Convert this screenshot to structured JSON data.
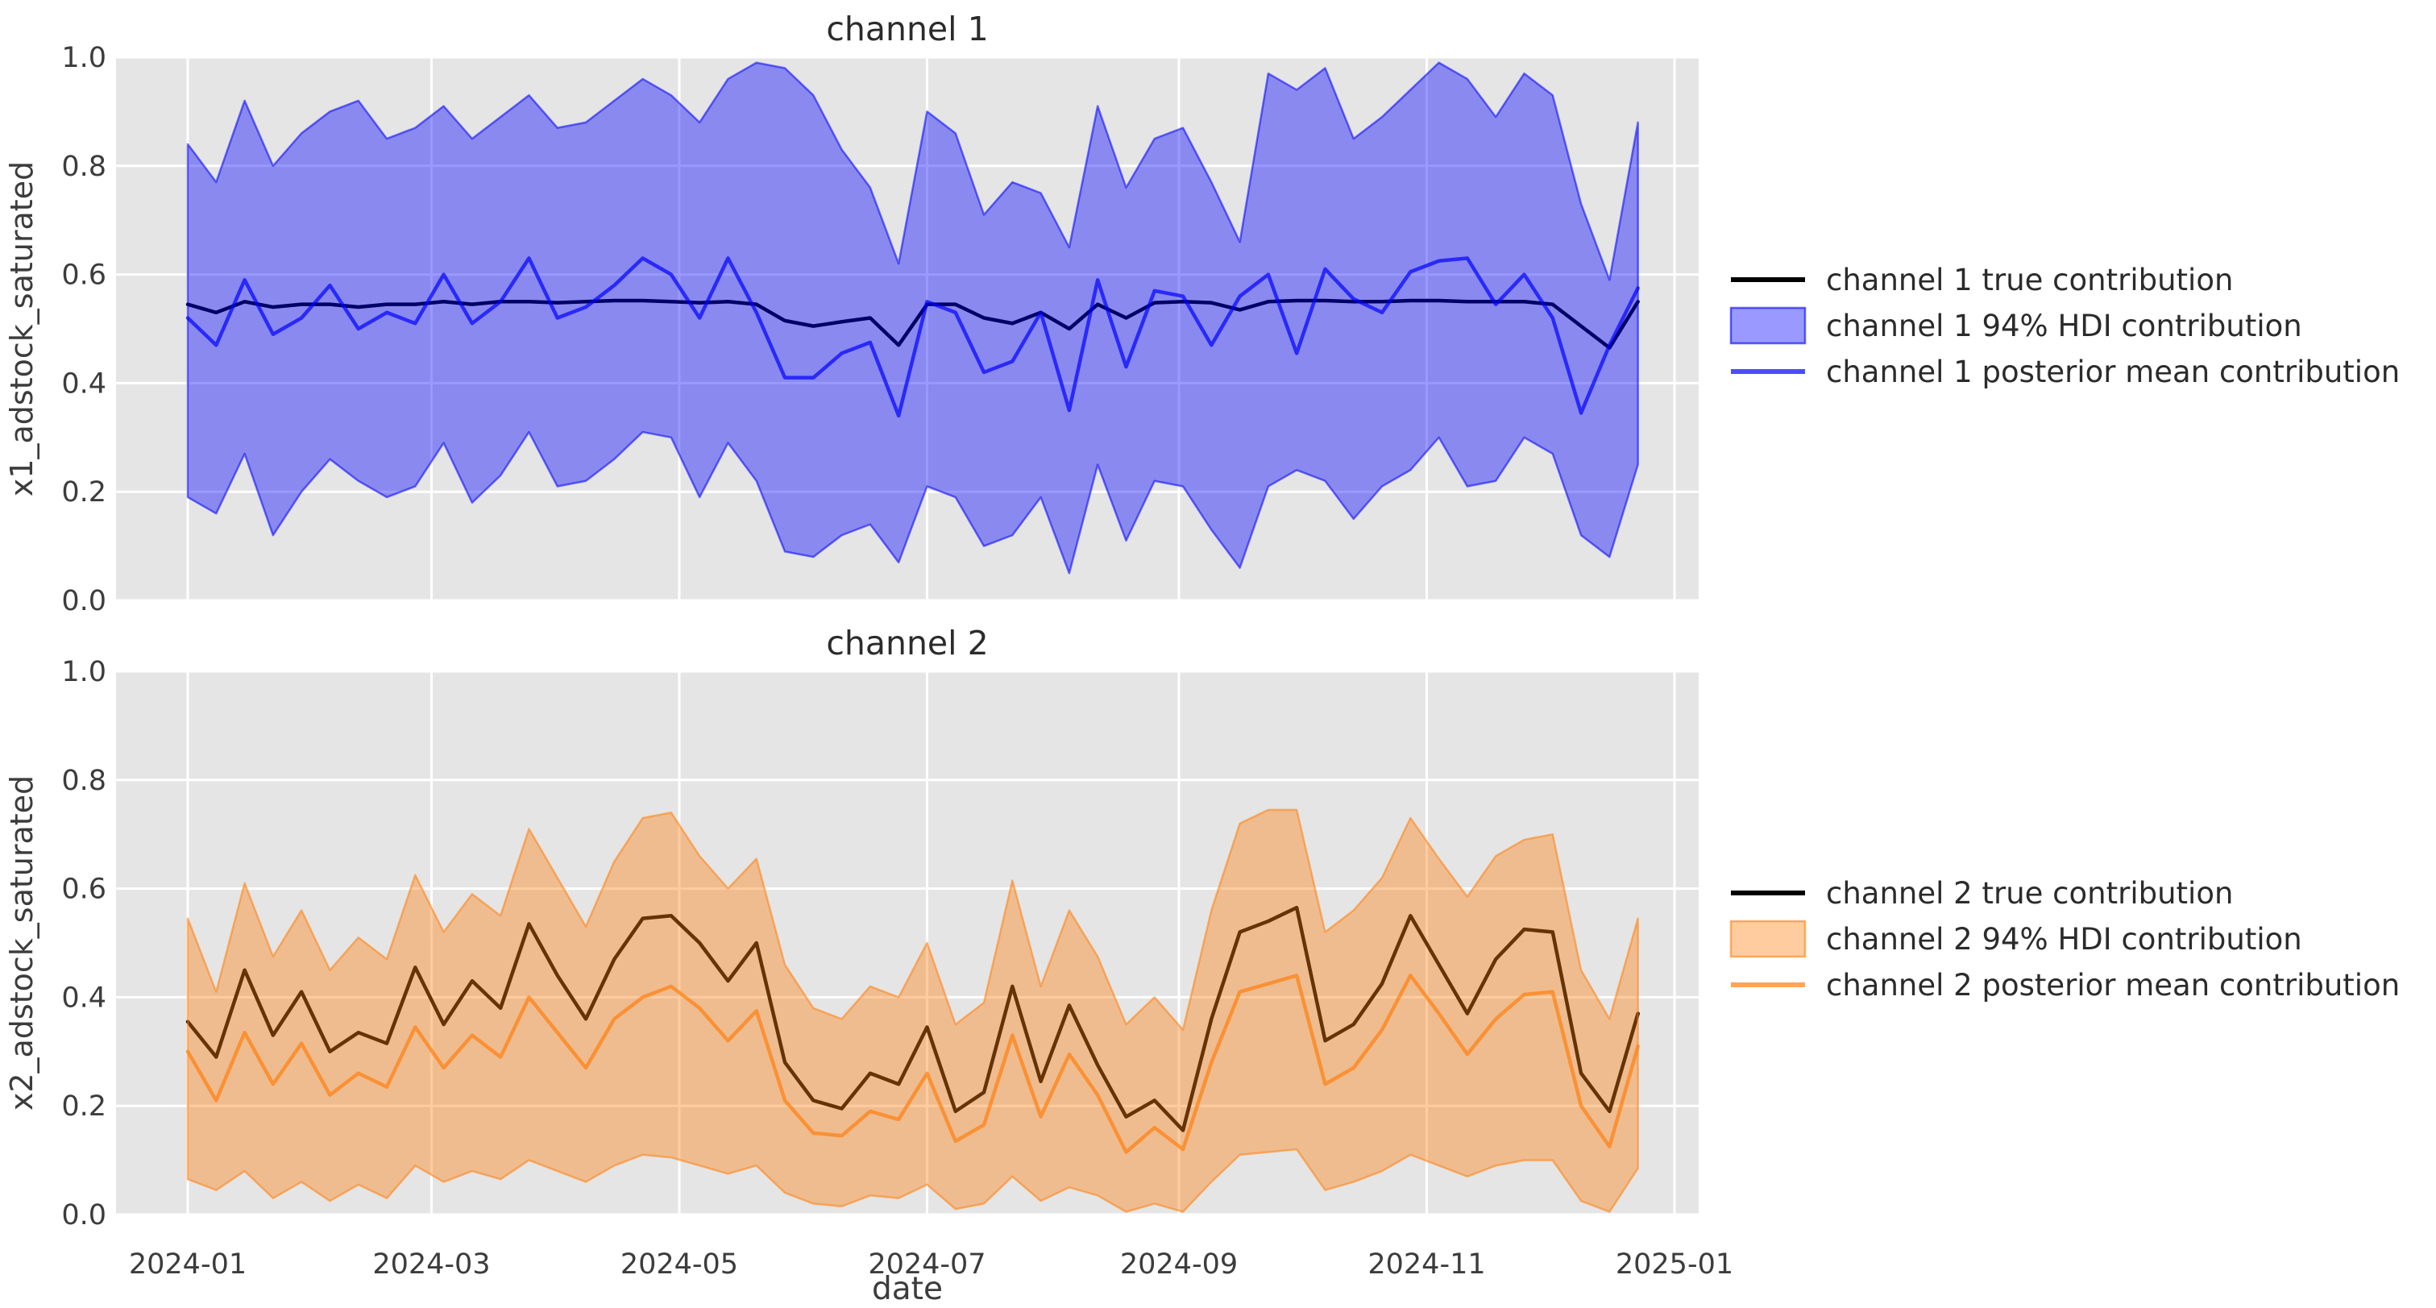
{
  "figure": {
    "background": "#ffffff",
    "axes_background": "#e5e5e5",
    "grid_color": "#ffffff",
    "tick_label_color": "#3c3c3c",
    "title_color": "#2b2b2b",
    "black_line_color": "#000000",
    "channel1_color": "#0000ff",
    "channel2_color": "#ff7f0e"
  },
  "chart_data": [
    {
      "type": "line",
      "title": "channel 1",
      "ylabel": "x1_adstock_saturated",
      "ylim": [
        0.0,
        1.0
      ],
      "yticks": [
        "0.0",
        "0.2",
        "0.4",
        "0.6",
        "0.8",
        "1.0"
      ],
      "grid": true,
      "legend_position": "right",
      "legend": [
        {
          "label": "channel 1 true contribution",
          "swatch": "line",
          "color": "#000000",
          "alpha": 1.0
        },
        {
          "label": "channel 1 94% HDI contribution",
          "swatch": "patch",
          "color": "#0000ff",
          "alpha": 0.4
        },
        {
          "label": "channel 1 posterior mean contribution",
          "swatch": "line",
          "color": "#0000ff",
          "alpha": 0.7
        }
      ],
      "series": [
        {
          "name": "channel 1 true contribution",
          "kind": "line",
          "color": "#000000",
          "alpha": 1.0,
          "values": [
            0.545,
            0.53,
            0.55,
            0.54,
            0.545,
            0.545,
            0.54,
            0.545,
            0.545,
            0.55,
            0.545,
            0.55,
            0.55,
            0.548,
            0.55,
            0.552,
            0.552,
            0.55,
            0.548,
            0.55,
            0.545,
            0.515,
            0.505,
            0.513,
            0.52,
            0.47,
            0.545,
            0.545,
            0.52,
            0.51,
            0.53,
            0.5,
            0.545,
            0.52,
            0.548,
            0.55,
            0.548,
            0.535,
            0.55,
            0.552,
            0.552,
            0.55,
            0.55,
            0.552,
            0.552,
            0.55,
            0.55,
            0.55,
            0.545,
            0.505,
            0.465,
            0.55
          ]
        },
        {
          "name": "channel 1 94% HDI contribution",
          "kind": "band",
          "color": "#0000ff",
          "alpha": 0.4,
          "upper": [
            0.84,
            0.77,
            0.92,
            0.8,
            0.86,
            0.9,
            0.92,
            0.85,
            0.87,
            0.91,
            0.85,
            0.89,
            0.93,
            0.87,
            0.88,
            0.92,
            0.96,
            0.93,
            0.88,
            0.96,
            0.99,
            0.98,
            0.93,
            0.83,
            0.76,
            0.62,
            0.9,
            0.86,
            0.71,
            0.77,
            0.75,
            0.65,
            0.91,
            0.76,
            0.85,
            0.87,
            0.77,
            0.66,
            0.97,
            0.94,
            0.98,
            0.85,
            0.89,
            0.94,
            0.99,
            0.96,
            0.89,
            0.97,
            0.93,
            0.73,
            0.59,
            0.88
          ],
          "lower": [
            0.19,
            0.16,
            0.27,
            0.12,
            0.2,
            0.26,
            0.22,
            0.19,
            0.21,
            0.29,
            0.18,
            0.23,
            0.31,
            0.21,
            0.22,
            0.26,
            0.31,
            0.3,
            0.19,
            0.29,
            0.22,
            0.09,
            0.08,
            0.12,
            0.14,
            0.07,
            0.21,
            0.19,
            0.1,
            0.12,
            0.19,
            0.05,
            0.25,
            0.11,
            0.22,
            0.21,
            0.13,
            0.06,
            0.21,
            0.24,
            0.22,
            0.15,
            0.21,
            0.24,
            0.3,
            0.21,
            0.22,
            0.3,
            0.27,
            0.12,
            0.08,
            0.25
          ]
        },
        {
          "name": "channel 1 posterior mean contribution",
          "kind": "line",
          "color": "#0000ff",
          "alpha": 0.7,
          "values": [
            0.52,
            0.47,
            0.59,
            0.49,
            0.52,
            0.58,
            0.5,
            0.53,
            0.51,
            0.6,
            0.51,
            0.55,
            0.63,
            0.52,
            0.54,
            0.58,
            0.63,
            0.6,
            0.52,
            0.63,
            0.53,
            0.41,
            0.41,
            0.455,
            0.475,
            0.34,
            0.55,
            0.53,
            0.42,
            0.44,
            0.53,
            0.35,
            0.59,
            0.43,
            0.57,
            0.56,
            0.47,
            0.56,
            0.6,
            0.455,
            0.61,
            0.555,
            0.53,
            0.605,
            0.625,
            0.63,
            0.545,
            0.6,
            0.52,
            0.345,
            0.47,
            0.575
          ]
        }
      ]
    },
    {
      "type": "line",
      "title": "channel 2",
      "ylabel": "x2_adstock_saturated",
      "ylim": [
        0.0,
        1.0
      ],
      "yticks": [
        "0.0",
        "0.2",
        "0.4",
        "0.6",
        "0.8",
        "1.0"
      ],
      "grid": true,
      "legend_position": "right",
      "legend": [
        {
          "label": "channel 2 true contribution",
          "swatch": "line",
          "color": "#000000",
          "alpha": 1.0
        },
        {
          "label": "channel 2 94% HDI contribution",
          "swatch": "patch",
          "color": "#ff7f0e",
          "alpha": 0.4
        },
        {
          "label": "channel 2 posterior mean contribution",
          "swatch": "line",
          "color": "#ff7f0e",
          "alpha": 0.7
        }
      ],
      "series": [
        {
          "name": "channel 2 true contribution",
          "kind": "line",
          "color": "#000000",
          "alpha": 1.0,
          "values": [
            0.355,
            0.29,
            0.45,
            0.33,
            0.41,
            0.3,
            0.335,
            0.315,
            0.455,
            0.35,
            0.43,
            0.38,
            0.535,
            0.44,
            0.36,
            0.47,
            0.545,
            0.55,
            0.5,
            0.43,
            0.5,
            0.28,
            0.21,
            0.195,
            0.26,
            0.24,
            0.345,
            0.19,
            0.225,
            0.42,
            0.245,
            0.385,
            0.275,
            0.18,
            0.21,
            0.155,
            0.36,
            0.52,
            0.54,
            0.565,
            0.32,
            0.35,
            0.425,
            0.55,
            0.46,
            0.37,
            0.47,
            0.525,
            0.52,
            0.26,
            0.19,
            0.37
          ]
        },
        {
          "name": "channel 2 94% HDI contribution",
          "kind": "band",
          "color": "#ff7f0e",
          "alpha": 0.4,
          "upper": [
            0.545,
            0.41,
            0.61,
            0.475,
            0.56,
            0.45,
            0.51,
            0.47,
            0.625,
            0.52,
            0.59,
            0.55,
            0.71,
            0.62,
            0.53,
            0.65,
            0.73,
            0.74,
            0.66,
            0.6,
            0.655,
            0.46,
            0.38,
            0.36,
            0.42,
            0.4,
            0.5,
            0.35,
            0.39,
            0.615,
            0.42,
            0.56,
            0.475,
            0.35,
            0.4,
            0.34,
            0.56,
            0.72,
            0.745,
            0.745,
            0.52,
            0.56,
            0.62,
            0.73,
            0.655,
            0.585,
            0.66,
            0.69,
            0.7,
            0.45,
            0.36,
            0.545
          ],
          "lower": [
            0.065,
            0.045,
            0.08,
            0.03,
            0.06,
            0.025,
            0.055,
            0.03,
            0.09,
            0.06,
            0.08,
            0.065,
            0.1,
            0.08,
            0.06,
            0.09,
            0.11,
            0.105,
            0.09,
            0.075,
            0.09,
            0.04,
            0.02,
            0.015,
            0.035,
            0.03,
            0.055,
            0.01,
            0.02,
            0.07,
            0.025,
            0.05,
            0.035,
            0.005,
            0.02,
            0.005,
            0.06,
            0.11,
            0.115,
            0.12,
            0.045,
            0.06,
            0.08,
            0.11,
            0.09,
            0.07,
            0.09,
            0.1,
            0.1,
            0.025,
            0.005,
            0.085
          ]
        },
        {
          "name": "channel 2 posterior mean contribution",
          "kind": "line",
          "color": "#ff7f0e",
          "alpha": 0.7,
          "values": [
            0.3,
            0.21,
            0.335,
            0.24,
            0.315,
            0.22,
            0.26,
            0.235,
            0.345,
            0.27,
            0.33,
            0.29,
            0.4,
            0.335,
            0.27,
            0.36,
            0.4,
            0.42,
            0.38,
            0.32,
            0.375,
            0.21,
            0.15,
            0.145,
            0.19,
            0.175,
            0.26,
            0.135,
            0.165,
            0.33,
            0.18,
            0.295,
            0.22,
            0.115,
            0.16,
            0.12,
            0.28,
            0.41,
            0.425,
            0.44,
            0.24,
            0.27,
            0.34,
            0.44,
            0.37,
            0.295,
            0.36,
            0.405,
            0.41,
            0.2,
            0.125,
            0.31
          ]
        }
      ]
    }
  ],
  "x_axis": {
    "label": "date",
    "tick_labels": [
      "2024-01",
      "2024-03",
      "2024-05",
      "2024-07",
      "2024-09",
      "2024-11",
      "2025-01"
    ],
    "tick_dates": [
      "2024-01-01",
      "2024-03-01",
      "2024-05-01",
      "2024-07-01",
      "2024-09-01",
      "2024-11-01",
      "2025-01-01"
    ],
    "dates": [
      "2024-01-01",
      "2024-01-08",
      "2024-01-15",
      "2024-01-22",
      "2024-01-29",
      "2024-02-05",
      "2024-02-12",
      "2024-02-19",
      "2024-02-26",
      "2024-03-04",
      "2024-03-11",
      "2024-03-18",
      "2024-03-25",
      "2024-04-01",
      "2024-04-08",
      "2024-04-15",
      "2024-04-22",
      "2024-04-29",
      "2024-05-06",
      "2024-05-13",
      "2024-05-20",
      "2024-05-27",
      "2024-06-03",
      "2024-06-10",
      "2024-06-17",
      "2024-06-24",
      "2024-07-01",
      "2024-07-08",
      "2024-07-15",
      "2024-07-22",
      "2024-07-29",
      "2024-08-05",
      "2024-08-12",
      "2024-08-19",
      "2024-08-26",
      "2024-09-02",
      "2024-09-09",
      "2024-09-16",
      "2024-09-23",
      "2024-09-30",
      "2024-10-07",
      "2024-10-14",
      "2024-10-21",
      "2024-10-28",
      "2024-11-04",
      "2024-11-11",
      "2024-11-18",
      "2024-11-25",
      "2024-12-02",
      "2024-12-09",
      "2024-12-16",
      "2024-12-23"
    ]
  }
}
